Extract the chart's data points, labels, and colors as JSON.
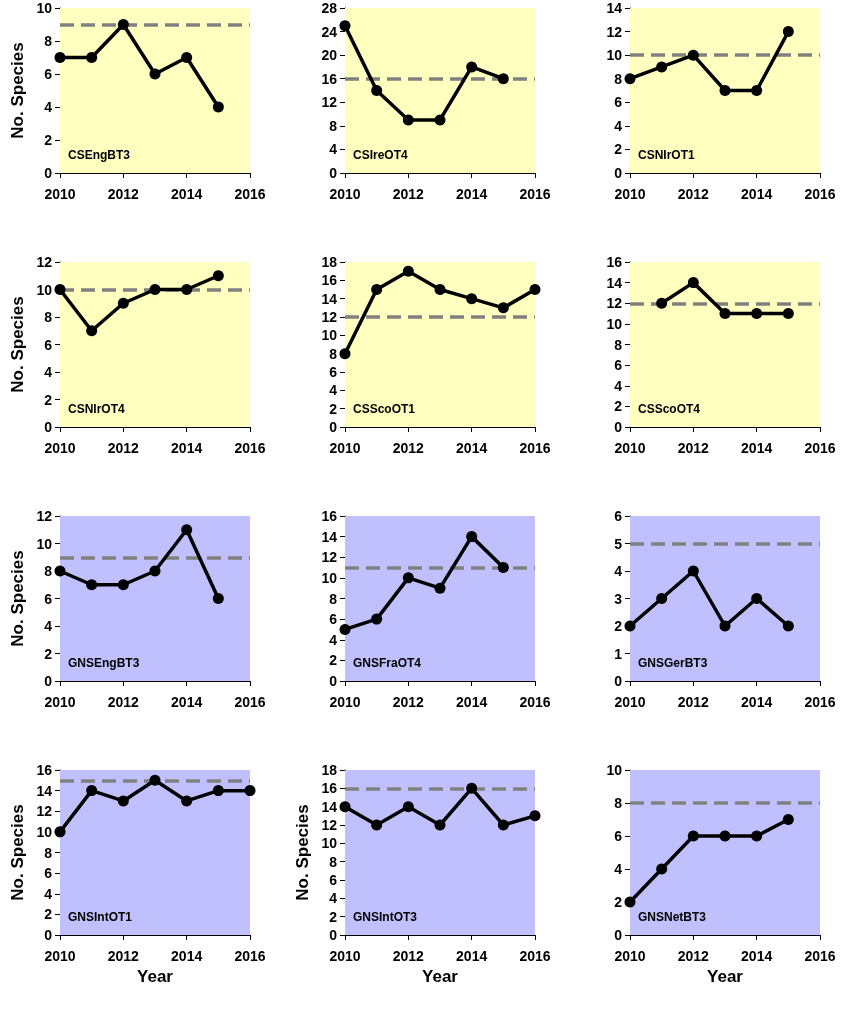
{
  "chart_data": [
    {
      "type": "line",
      "ylabel": "No. Species",
      "annotations": [
        "CSEngBT3"
      ],
      "x": [
        2010,
        2011,
        2012,
        2013,
        2014,
        2015
      ],
      "series": [
        {
          "color": "#000000",
          "values": [
            7,
            7,
            9,
            6,
            7,
            4
          ]
        }
      ],
      "xlim": [
        2010,
        2016
      ],
      "xticks": [
        2010,
        2012,
        2014,
        2016
      ],
      "ylim": [
        0,
        10
      ],
      "yticks": [
        0,
        2,
        4,
        6,
        8,
        10
      ],
      "ref_lines": [
        {
          "axis": "y",
          "value": 9,
          "color": "#808080",
          "line_style": "dashed"
        }
      ],
      "bands": [
        {
          "axis": "y",
          "from": 0,
          "to": 10,
          "color": "#ffffc0"
        }
      ],
      "marker": "circle",
      "line_style": "solid"
    },
    {
      "type": "line",
      "annotations": [
        "CSIreOT4"
      ],
      "x": [
        2010,
        2011,
        2012,
        2013,
        2014,
        2015
      ],
      "series": [
        {
          "color": "#000000",
          "values": [
            25,
            14,
            9,
            9,
            18,
            16
          ]
        }
      ],
      "xlim": [
        2010,
        2016
      ],
      "xticks": [
        2010,
        2012,
        2014,
        2016
      ],
      "ylim": [
        0,
        28
      ],
      "yticks": [
        0,
        4,
        8,
        12,
        16,
        20,
        24,
        28
      ],
      "ref_lines": [
        {
          "axis": "y",
          "value": 16,
          "color": "#808080",
          "line_style": "dashed"
        }
      ],
      "bands": [
        {
          "axis": "y",
          "from": 0,
          "to": 28,
          "color": "#ffffc0"
        }
      ],
      "marker": "circle",
      "line_style": "solid"
    },
    {
      "type": "line",
      "annotations": [
        "CSNIrOT1"
      ],
      "x": [
        2010,
        2011,
        2012,
        2013,
        2014,
        2015
      ],
      "series": [
        {
          "color": "#000000",
          "values": [
            8,
            9,
            10,
            7,
            7,
            12
          ]
        }
      ],
      "xlim": [
        2010,
        2016
      ],
      "xticks": [
        2010,
        2012,
        2014,
        2016
      ],
      "ylim": [
        0,
        14
      ],
      "yticks": [
        0,
        2,
        4,
        6,
        8,
        10,
        12,
        14
      ],
      "ref_lines": [
        {
          "axis": "y",
          "value": 10,
          "color": "#808080",
          "line_style": "dashed"
        }
      ],
      "bands": [
        {
          "axis": "y",
          "from": 0,
          "to": 14,
          "color": "#ffffc0"
        }
      ],
      "marker": "circle",
      "line_style": "solid"
    },
    {
      "type": "line",
      "ylabel": "No. Species",
      "annotations": [
        "CSNIrOT4"
      ],
      "x": [
        2010,
        2011,
        2012,
        2013,
        2014,
        2015
      ],
      "series": [
        {
          "color": "#000000",
          "values": [
            10,
            7,
            9,
            10,
            10,
            11
          ]
        }
      ],
      "xlim": [
        2010,
        2016
      ],
      "xticks": [
        2010,
        2012,
        2014,
        2016
      ],
      "ylim": [
        0,
        12
      ],
      "yticks": [
        0,
        2,
        4,
        6,
        8,
        10,
        12
      ],
      "ref_lines": [
        {
          "axis": "y",
          "value": 10,
          "color": "#808080",
          "line_style": "dashed"
        }
      ],
      "bands": [
        {
          "axis": "y",
          "from": 0,
          "to": 12,
          "color": "#ffffc0"
        }
      ],
      "marker": "circle",
      "line_style": "solid"
    },
    {
      "type": "line",
      "annotations": [
        "CSScoOT1"
      ],
      "x": [
        2010,
        2011,
        2012,
        2013,
        2014,
        2015,
        2016
      ],
      "series": [
        {
          "color": "#000000",
          "values": [
            8,
            15,
            17,
            15,
            14,
            13,
            15
          ]
        }
      ],
      "xlim": [
        2010,
        2016
      ],
      "xticks": [
        2010,
        2012,
        2014,
        2016
      ],
      "ylim": [
        0,
        18
      ],
      "yticks": [
        0,
        2,
        4,
        6,
        8,
        10,
        12,
        14,
        16,
        18
      ],
      "ref_lines": [
        {
          "axis": "y",
          "value": 12,
          "color": "#808080",
          "line_style": "dashed"
        }
      ],
      "bands": [
        {
          "axis": "y",
          "from": 0,
          "to": 18,
          "color": "#ffffc0"
        }
      ],
      "marker": "circle",
      "line_style": "solid"
    },
    {
      "type": "line",
      "annotations": [
        "CSScoOT4"
      ],
      "x": [
        2011,
        2012,
        2013,
        2014,
        2015
      ],
      "series": [
        {
          "color": "#000000",
          "values": [
            12,
            14,
            11,
            11,
            11
          ]
        }
      ],
      "xlim": [
        2010,
        2016
      ],
      "xticks": [
        2010,
        2012,
        2014,
        2016
      ],
      "ylim": [
        0,
        16
      ],
      "yticks": [
        0,
        2,
        4,
        6,
        8,
        10,
        12,
        14,
        16
      ],
      "ref_lines": [
        {
          "axis": "y",
          "value": 12,
          "color": "#808080",
          "line_style": "dashed"
        }
      ],
      "bands": [
        {
          "axis": "y",
          "from": 0,
          "to": 16,
          "color": "#ffffc0"
        }
      ],
      "marker": "circle",
      "line_style": "solid"
    },
    {
      "type": "line",
      "ylabel": "No. Species",
      "annotations": [
        "GNSEngBT3"
      ],
      "x": [
        2010,
        2011,
        2012,
        2013,
        2014,
        2015
      ],
      "series": [
        {
          "color": "#000000",
          "values": [
            8,
            7,
            7,
            8,
            11,
            6
          ]
        }
      ],
      "xlim": [
        2010,
        2016
      ],
      "xticks": [
        2010,
        2012,
        2014,
        2016
      ],
      "ylim": [
        0,
        12
      ],
      "yticks": [
        0,
        2,
        4,
        6,
        8,
        10,
        12
      ],
      "ref_lines": [
        {
          "axis": "y",
          "value": 9,
          "color": "#808080",
          "line_style": "dashed"
        }
      ],
      "bands": [
        {
          "axis": "y",
          "from": 0,
          "to": 12,
          "color": "#c0c0ff"
        }
      ],
      "marker": "circle",
      "line_style": "solid"
    },
    {
      "type": "line",
      "annotations": [
        "GNSFraOT4"
      ],
      "x": [
        2010,
        2011,
        2012,
        2013,
        2014,
        2015
      ],
      "series": [
        {
          "color": "#000000",
          "values": [
            5,
            6,
            10,
            9,
            14,
            11
          ]
        }
      ],
      "xlim": [
        2010,
        2016
      ],
      "xticks": [
        2010,
        2012,
        2014,
        2016
      ],
      "ylim": [
        0,
        16
      ],
      "yticks": [
        0,
        2,
        4,
        6,
        8,
        10,
        12,
        14,
        16
      ],
      "ref_lines": [
        {
          "axis": "y",
          "value": 11,
          "color": "#808080",
          "line_style": "dashed"
        }
      ],
      "bands": [
        {
          "axis": "y",
          "from": 0,
          "to": 16,
          "color": "#c0c0ff"
        }
      ],
      "marker": "circle",
      "line_style": "solid"
    },
    {
      "type": "line",
      "annotations": [
        "GNSGerBT3"
      ],
      "x": [
        2010,
        2011,
        2012,
        2013,
        2014,
        2015
      ],
      "series": [
        {
          "color": "#000000",
          "values": [
            2,
            3,
            4,
            2,
            3,
            2
          ]
        }
      ],
      "xlim": [
        2010,
        2016
      ],
      "xticks": [
        2010,
        2012,
        2014,
        2016
      ],
      "ylim": [
        0,
        6
      ],
      "yticks": [
        0,
        1,
        2,
        3,
        4,
        5,
        6
      ],
      "ref_lines": [
        {
          "axis": "y",
          "value": 5,
          "color": "#808080",
          "line_style": "dashed"
        }
      ],
      "bands": [
        {
          "axis": "y",
          "from": 0,
          "to": 6,
          "color": "#c0c0ff"
        }
      ],
      "marker": "circle",
      "line_style": "solid"
    },
    {
      "type": "line",
      "ylabel": "No. Species",
      "xlabel": "Year",
      "annotations": [
        "GNSIntOT1"
      ],
      "x": [
        2010,
        2011,
        2012,
        2013,
        2014,
        2015,
        2016
      ],
      "series": [
        {
          "color": "#000000",
          "values": [
            10,
            14,
            13,
            15,
            13,
            14,
            14
          ]
        }
      ],
      "xlim": [
        2010,
        2016
      ],
      "xticks": [
        2010,
        2012,
        2014,
        2016
      ],
      "ylim": [
        0,
        16
      ],
      "yticks": [
        0,
        2,
        4,
        6,
        8,
        10,
        12,
        14,
        16
      ],
      "ref_lines": [
        {
          "axis": "y",
          "value": 15,
          "color": "#808080",
          "line_style": "dashed"
        }
      ],
      "bands": [
        {
          "axis": "y",
          "from": 0,
          "to": 16,
          "color": "#c0c0ff"
        }
      ],
      "marker": "circle",
      "line_style": "solid"
    },
    {
      "type": "line",
      "ylabel": "No. Species",
      "xlabel": "Year",
      "annotations": [
        "GNSIntOT3"
      ],
      "x": [
        2010,
        2011,
        2012,
        2013,
        2014,
        2015,
        2016
      ],
      "series": [
        {
          "color": "#000000",
          "values": [
            14,
            12,
            14,
            12,
            16,
            12,
            13
          ]
        }
      ],
      "xlim": [
        2010,
        2016
      ],
      "xticks": [
        2010,
        2012,
        2014,
        2016
      ],
      "ylim": [
        0,
        18
      ],
      "yticks": [
        0,
        2,
        4,
        6,
        8,
        10,
        12,
        14,
        16,
        18
      ],
      "ref_lines": [
        {
          "axis": "y",
          "value": 16,
          "color": "#808080",
          "line_style": "dashed"
        }
      ],
      "bands": [
        {
          "axis": "y",
          "from": 0,
          "to": 18,
          "color": "#c0c0ff"
        }
      ],
      "marker": "circle",
      "line_style": "solid"
    },
    {
      "type": "line",
      "xlabel": "Year",
      "annotations": [
        "GNSNetBT3"
      ],
      "x": [
        2010,
        2011,
        2012,
        2013,
        2014,
        2015
      ],
      "series": [
        {
          "color": "#000000",
          "values": [
            2,
            4,
            6,
            6,
            6,
            7
          ]
        }
      ],
      "xlim": [
        2010,
        2016
      ],
      "xticks": [
        2010,
        2012,
        2014,
        2016
      ],
      "ylim": [
        0,
        10
      ],
      "yticks": [
        0,
        2,
        4,
        6,
        8,
        10
      ],
      "ref_lines": [
        {
          "axis": "y",
          "value": 8,
          "color": "#808080",
          "line_style": "dashed"
        }
      ],
      "bands": [
        {
          "axis": "y",
          "from": 0,
          "to": 10,
          "color": "#c0c0ff"
        }
      ],
      "marker": "circle",
      "line_style": "solid"
    }
  ]
}
